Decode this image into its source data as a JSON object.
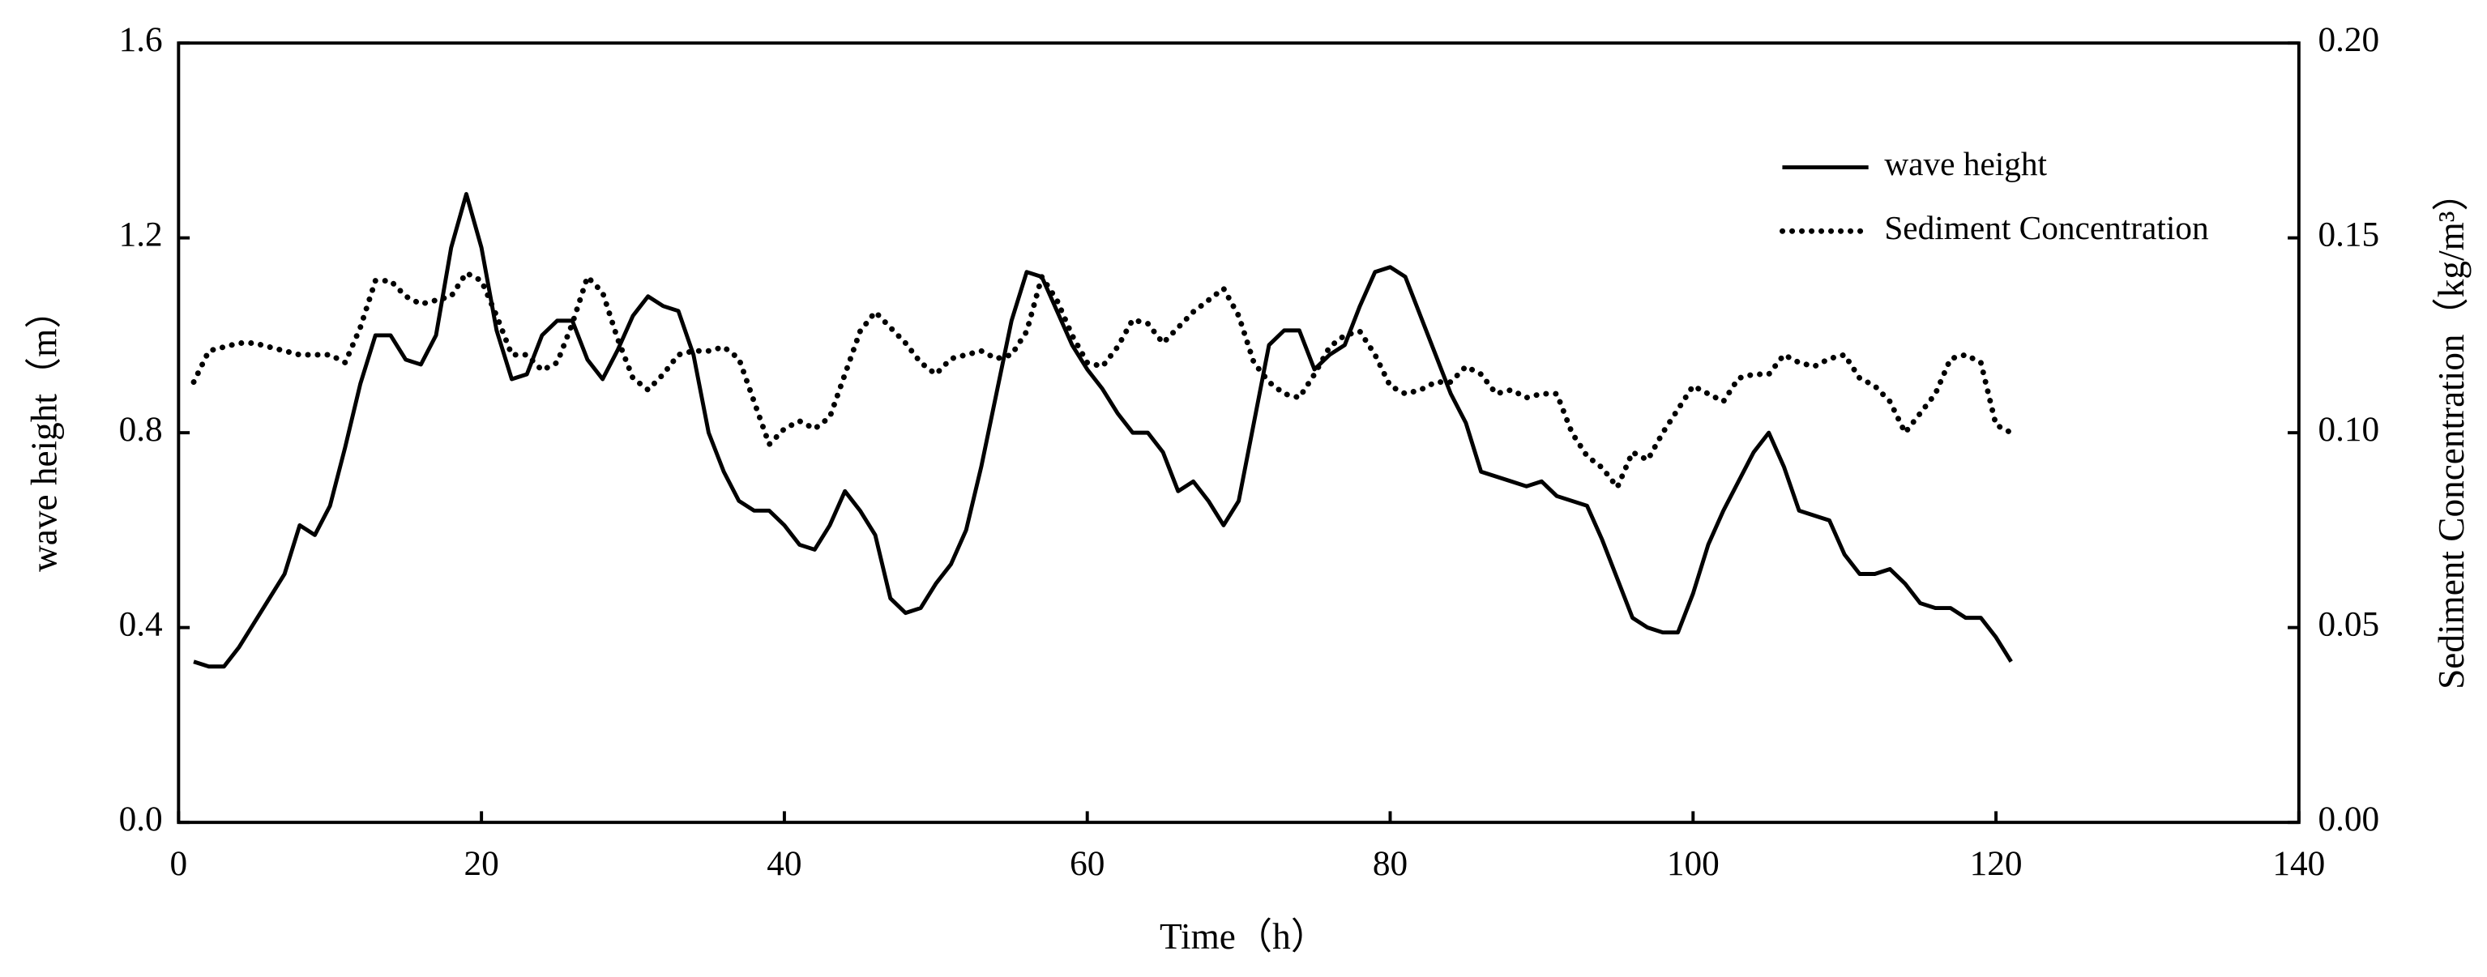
{
  "chart_data": {
    "type": "line",
    "xlabel": "Time（h）",
    "ylabel": "wave height（m）",
    "y2label": "Sediment Concentration（kg/m³）",
    "x": [
      1,
      2,
      3,
      4,
      5,
      6,
      7,
      8,
      9,
      10,
      11,
      12,
      13,
      14,
      15,
      16,
      17,
      18,
      19,
      20,
      21,
      22,
      23,
      24,
      25,
      26,
      27,
      28,
      29,
      30,
      31,
      32,
      33,
      34,
      35,
      36,
      37,
      38,
      39,
      40,
      41,
      42,
      43,
      44,
      45,
      46,
      47,
      48,
      49,
      50,
      51,
      52,
      53,
      54,
      55,
      56,
      57,
      58,
      59,
      60,
      61,
      62,
      63,
      64,
      65,
      66,
      67,
      68,
      69,
      70,
      71,
      72,
      73,
      74,
      75,
      76,
      77,
      78,
      79,
      80,
      81,
      82,
      83,
      84,
      85,
      86,
      87,
      88,
      89,
      90,
      91,
      92,
      93,
      94,
      95,
      96,
      97,
      98,
      99,
      100,
      101,
      102,
      103,
      104,
      105,
      106,
      107,
      108,
      109,
      110,
      111,
      112,
      113,
      114,
      115,
      116,
      117,
      118,
      119,
      120,
      121
    ],
    "series": [
      {
        "name": "wave height",
        "color": "#000000",
        "style": "solid",
        "values": [
          0.33,
          0.32,
          0.32,
          0.36,
          0.41,
          0.46,
          0.51,
          0.61,
          0.59,
          0.65,
          0.77,
          0.9,
          1.0,
          1.0,
          0.95,
          0.94,
          1.0,
          1.18,
          1.29,
          1.18,
          1.01,
          0.91,
          0.92,
          1.0,
          1.03,
          1.03,
          0.95,
          0.91,
          0.97,
          1.04,
          1.08,
          1.06,
          1.05,
          0.96,
          0.8,
          0.72,
          0.66,
          0.64,
          0.64,
          0.61,
          0.57,
          0.56,
          0.61,
          0.68,
          0.64,
          0.59,
          0.46,
          0.43,
          0.44,
          0.49,
          0.53,
          0.6,
          0.73,
          0.88,
          1.03,
          1.13,
          1.12,
          1.05,
          0.98,
          0.93,
          0.89,
          0.84,
          0.8,
          0.8,
          0.76,
          0.68,
          0.7,
          0.66,
          0.61,
          0.66,
          0.82,
          0.98,
          1.01,
          1.01,
          0.93,
          0.96,
          0.98,
          1.06,
          1.13,
          1.14,
          1.12,
          1.04,
          0.96,
          0.88,
          0.82,
          0.72,
          0.71,
          0.7,
          0.69,
          0.7,
          0.67,
          0.66,
          0.65,
          0.58,
          0.5,
          0.42,
          0.4,
          0.39,
          0.39,
          0.47,
          0.57,
          0.64,
          0.7,
          0.76,
          0.8,
          0.73,
          0.64,
          0.63,
          0.62,
          0.55,
          0.51,
          0.51,
          0.52,
          0.49,
          0.45,
          0.44,
          0.44,
          0.42,
          0.42,
          0.38,
          0.33
        ]
      },
      {
        "name": "Sediment Concentration",
        "color": "#000000",
        "style": "dotted",
        "axis": "y2",
        "values": [
          0.113,
          0.121,
          0.122,
          0.123,
          0.123,
          0.122,
          0.121,
          0.12,
          0.12,
          0.12,
          0.118,
          0.127,
          0.139,
          0.139,
          0.135,
          0.133,
          0.134,
          0.135,
          0.141,
          0.139,
          0.13,
          0.12,
          0.12,
          0.116,
          0.118,
          0.128,
          0.14,
          0.136,
          0.124,
          0.114,
          0.111,
          0.115,
          0.12,
          0.121,
          0.121,
          0.122,
          0.119,
          0.108,
          0.097,
          0.101,
          0.103,
          0.101,
          0.104,
          0.115,
          0.126,
          0.131,
          0.127,
          0.123,
          0.118,
          0.115,
          0.119,
          0.12,
          0.121,
          0.119,
          0.12,
          0.126,
          0.14,
          0.134,
          0.125,
          0.118,
          0.117,
          0.122,
          0.129,
          0.128,
          0.123,
          0.127,
          0.131,
          0.134,
          0.137,
          0.13,
          0.118,
          0.113,
          0.11,
          0.109,
          0.115,
          0.122,
          0.125,
          0.126,
          0.12,
          0.112,
          0.11,
          0.111,
          0.113,
          0.113,
          0.117,
          0.115,
          0.11,
          0.111,
          0.109,
          0.11,
          0.11,
          0.1,
          0.094,
          0.091,
          0.086,
          0.095,
          0.093,
          0.1,
          0.106,
          0.112,
          0.11,
          0.108,
          0.114,
          0.115,
          0.115,
          0.12,
          0.118,
          0.117,
          0.119,
          0.12,
          0.114,
          0.112,
          0.108,
          0.1,
          0.105,
          0.11,
          0.119,
          0.12,
          0.118,
          0.102,
          0.1
        ]
      }
    ],
    "xlim": [
      0,
      140
    ],
    "xticks": [
      0,
      20,
      40,
      60,
      80,
      100,
      120,
      140
    ],
    "ylim": [
      0,
      1.6
    ],
    "yticks": [
      {
        "value": 0,
        "label": "0.0"
      },
      0.4,
      0.8,
      1.2,
      1.6
    ],
    "y2lim": [
      0,
      0.2
    ],
    "y2ticks": [
      {
        "value": 0,
        "label": "0.00"
      },
      {
        "value": 0.05,
        "label": "0.05"
      },
      {
        "value": 0.1,
        "label": "0.10"
      },
      {
        "value": 0.15,
        "label": "0.15"
      },
      {
        "value": 0.2,
        "label": "0.20"
      }
    ],
    "grid": false,
    "legend": "upper right"
  }
}
